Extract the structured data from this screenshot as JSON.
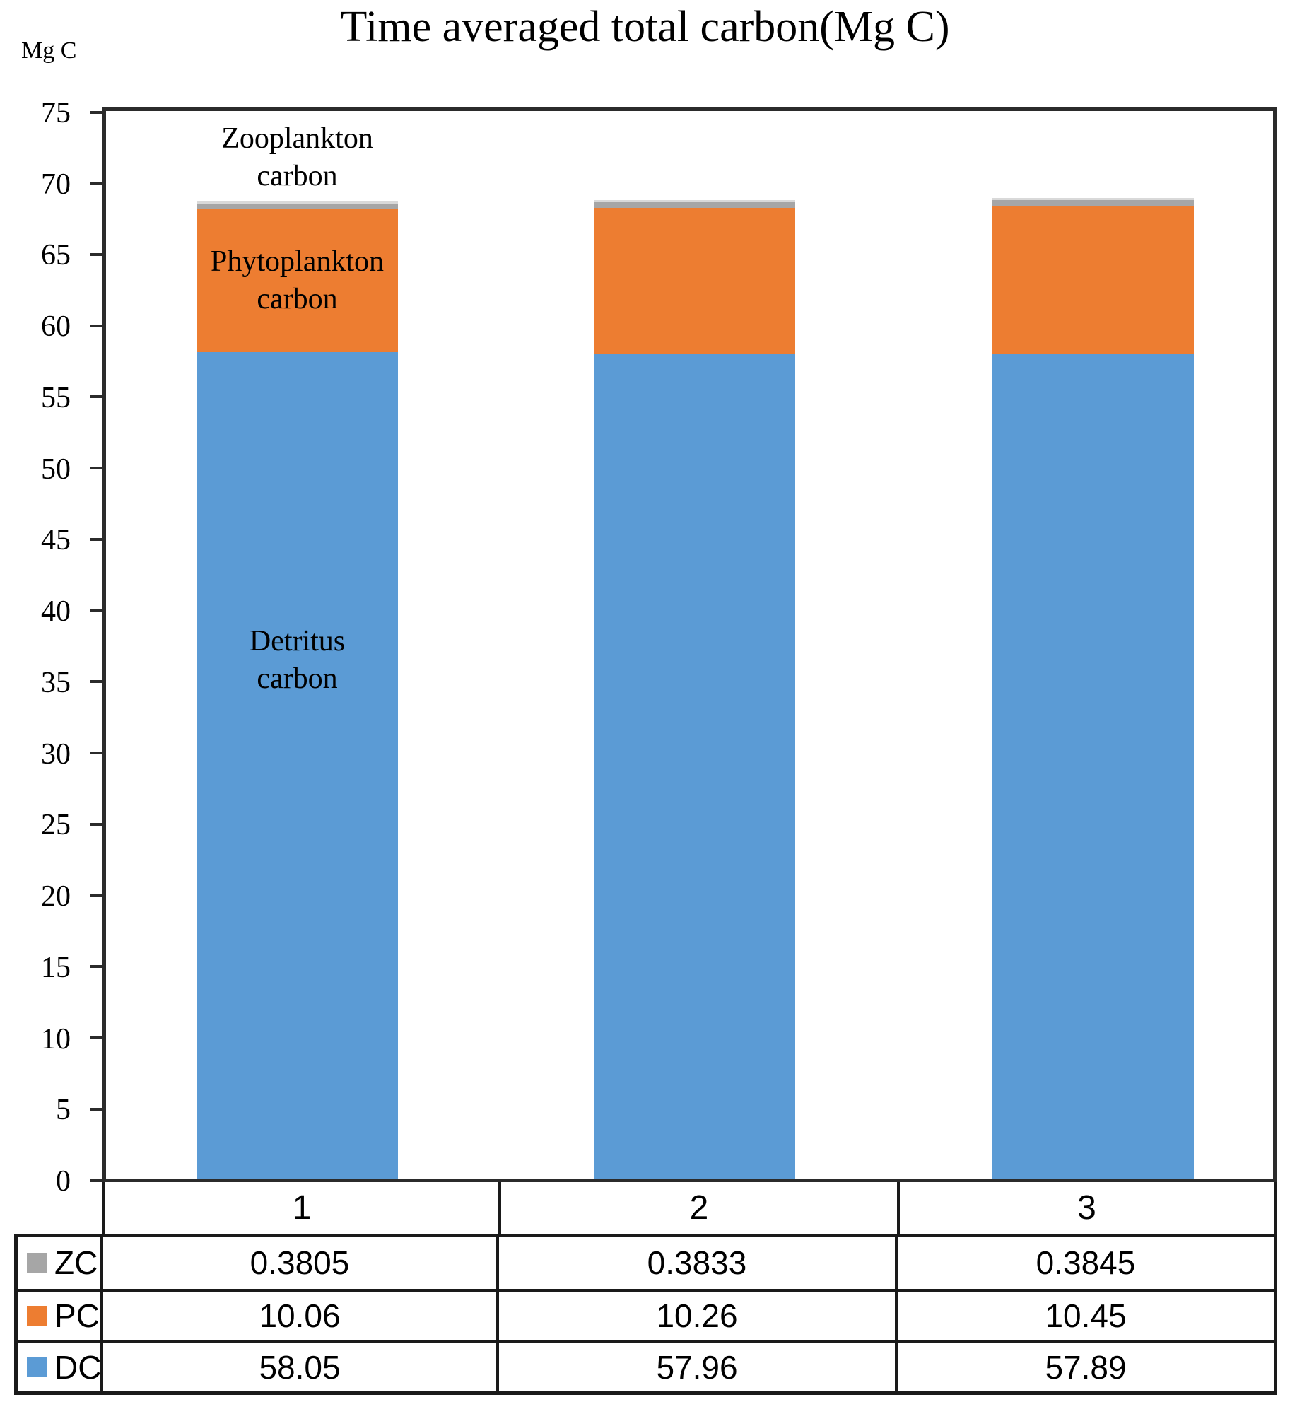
{
  "title": "Time averaged total carbon(Mg C)",
  "chart_data": {
    "type": "bar",
    "stacked": true,
    "title": "Time averaged total carbon(Mg C)",
    "xlabel": "",
    "ylabel": "Mg C",
    "ylim": [
      0,
      75
    ],
    "yticks": [
      0,
      5,
      10,
      15,
      20,
      25,
      30,
      35,
      40,
      45,
      50,
      55,
      60,
      65,
      70,
      75
    ],
    "grid": false,
    "legend_position": "table-row-headers",
    "categories": [
      "1",
      "2",
      "3"
    ],
    "series": [
      {
        "key": "DC",
        "name": "Detritus carbon",
        "color": "#5b9bd5",
        "values": [
          58.05,
          57.96,
          57.89
        ]
      },
      {
        "key": "PC",
        "name": "Phytoplankton carbon",
        "color": "#ed7d31",
        "values": [
          10.06,
          10.26,
          10.45
        ]
      },
      {
        "key": "ZC",
        "name": "Zooplankton carbon",
        "color": "#a6a6a6",
        "values": [
          0.3805,
          0.3833,
          0.3845
        ]
      }
    ],
    "annotations": [
      {
        "text": "Zooplankton\ncarbon",
        "anchor": "above-bar-1"
      },
      {
        "text": "Phytoplankton\ncarbon",
        "anchor": "pc-segment-bar-1"
      },
      {
        "text": "Detritus\ncarbon",
        "anchor": "dc-segment-bar-1"
      }
    ]
  },
  "table": {
    "categories": [
      "1",
      "2",
      "3"
    ],
    "rows": [
      {
        "key": "ZC",
        "label": "ZC",
        "swatch_color": "#a6a6a6",
        "values": [
          "0.3805",
          "0.3833",
          "0.3845"
        ]
      },
      {
        "key": "PC",
        "label": "PC",
        "swatch_color": "#ed7d31",
        "values": [
          "10.06",
          "10.26",
          "10.45"
        ]
      },
      {
        "key": "DC",
        "label": "DC",
        "swatch_color": "#5b9bd5",
        "values": [
          "58.05",
          "57.96",
          "57.89"
        ]
      }
    ]
  },
  "colors": {
    "axis_line": "#2b2b2b",
    "table_border": "#1a1a1a",
    "text": "#000000"
  }
}
